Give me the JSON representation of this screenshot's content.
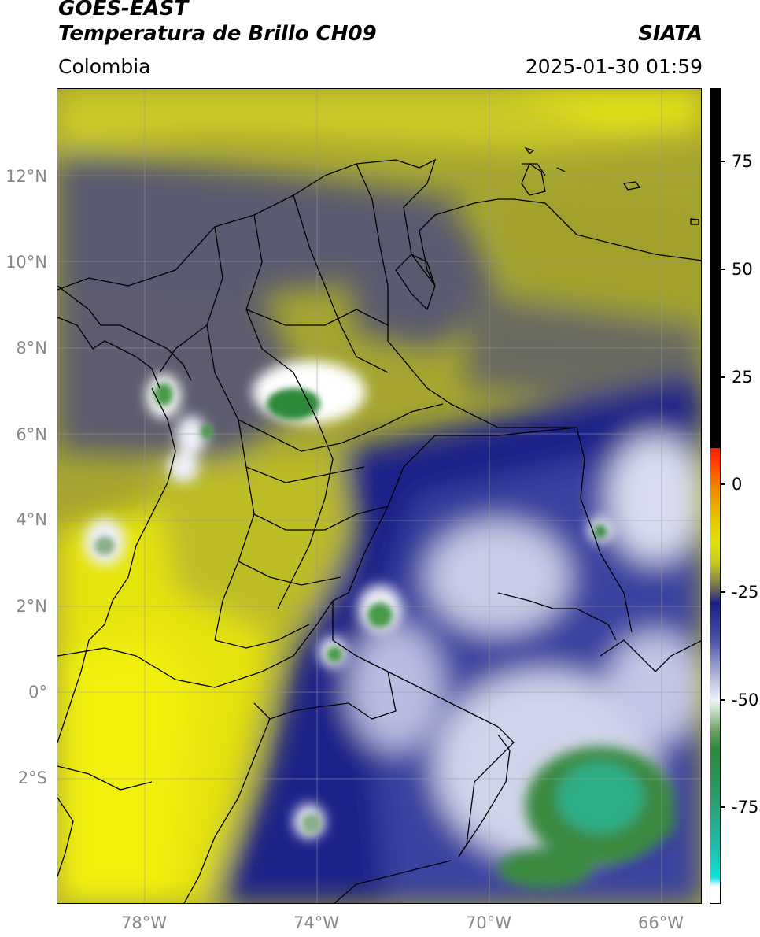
{
  "header": {
    "satellite": "GOES-EAST",
    "product": "Temperatura de Brillo CH09",
    "region": "Colombia",
    "agency": "SIATA",
    "datetime": "2025-01-30 01:59"
  },
  "map": {
    "lat_labels": [
      "12°N",
      "10°N",
      "8°N",
      "6°N",
      "4°N",
      "2°N",
      "0°",
      "2°S"
    ],
    "lon_labels": [
      "78°W",
      "74°W",
      "70°W",
      "66°W"
    ],
    "gridlines": true,
    "colors": {
      "cold_top": "#2a8a3a",
      "very_cold": "#2bbf9a",
      "cloud_white": "#eef0f8",
      "mid_blue": "#1a1f8a",
      "dry_gray": "#55556a",
      "dry_olive": "#9a9a30",
      "dry_yellow": "#e8e60a",
      "borders": "#000000"
    }
  },
  "colorbar": {
    "labels": [
      "75",
      "50",
      "25",
      "0",
      "-25",
      "-50",
      "-75"
    ],
    "stops": [
      "#ffffff",
      "#10dcd8",
      "#2a8a3a",
      "#e6f2e6",
      "#eef0f8",
      "#1a1f8a",
      "#55556a",
      "#c8c820",
      "#e8e60a",
      "#f08000",
      "#ff0000",
      "#000000"
    ]
  }
}
